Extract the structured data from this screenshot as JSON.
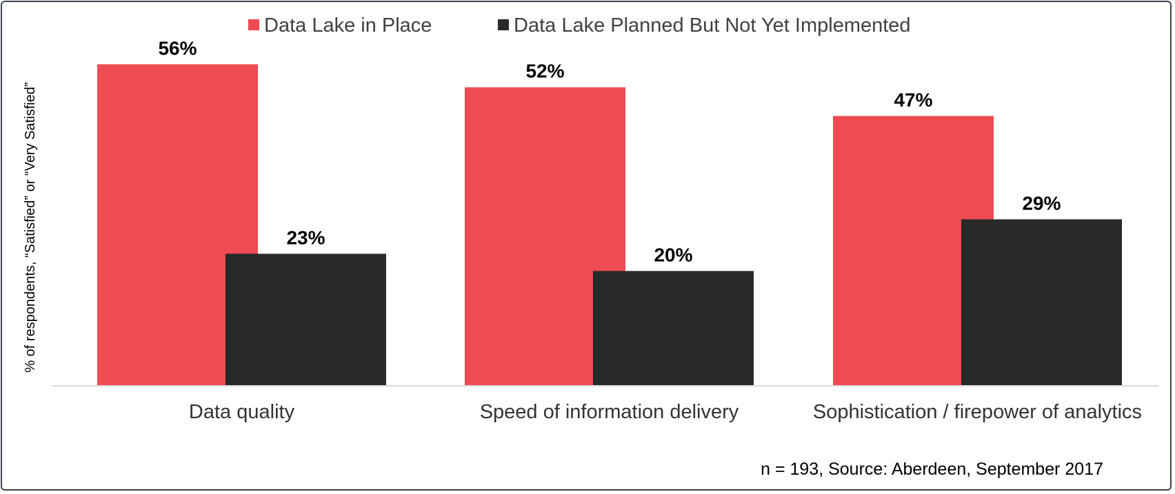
{
  "chart_data": {
    "type": "bar",
    "categories": [
      "Data quality",
      "Speed of information delivery",
      "Sophistication / firepower of analytics"
    ],
    "series": [
      {
        "name": "Data Lake in Place",
        "values": [
          56,
          52,
          47
        ],
        "color": "#ee4b53"
      },
      {
        "name": "Data Lake Planned But Not Yet Implemented",
        "values": [
          23,
          20,
          29
        ],
        "color": "#272a29"
      }
    ],
    "value_suffix": "%",
    "ylabel": "% of respondents,  “Satisfied” or “Very Satisfied”",
    "xlabel": "",
    "ylim": [
      0,
      60
    ],
    "grid": false,
    "legend_position": "top-center",
    "note": "n = 193, Source: Aberdeen, September  2017"
  }
}
